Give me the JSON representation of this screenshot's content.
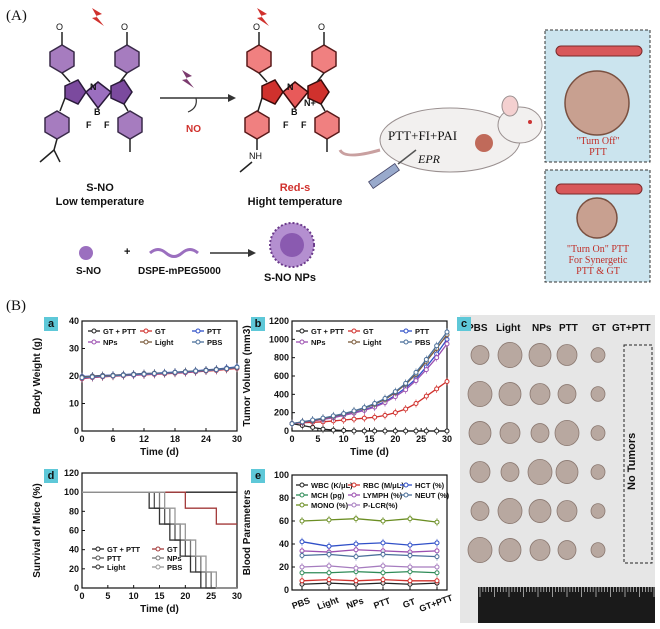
{
  "labels": {
    "A": "(A)",
    "B": "(B)"
  },
  "scheme": {
    "sno_name": "S-NO",
    "sno_sub": "Low temperature",
    "reds_name": "Red-s",
    "reds_sub": "Hight temperature",
    "no_label": "NO",
    "atoms": {
      "N": "N",
      "N_plus": "N+",
      "B": "B",
      "F1": "F",
      "F2": "F",
      "NH": "NH",
      "OMe": "O"
    },
    "modality": "PTT+FI+PAI",
    "epr": "EPR",
    "np_eq_sno": "S-NO",
    "np_eq_plus": "+",
    "np_eq_dspe": "DSPE-mPEG5000",
    "np_name": "S-NO NPs",
    "turn_off_1": "\"Turn Off\"",
    "turn_off_2": "PTT",
    "turn_on_1": "\"Turn On\" PTT",
    "turn_on_2": "For Synergetic",
    "turn_on_3": "PTT & GT"
  },
  "panel_tags": {
    "a": "a",
    "b": "b",
    "c": "c",
    "d": "d",
    "e": "e"
  },
  "photo": {
    "columns": [
      "PBS",
      "Light",
      "NPs",
      "PTT",
      "GT",
      "GT+PTT"
    ],
    "no_tumors": "No Tumors"
  },
  "chart_data": [
    {
      "id": "a",
      "type": "line",
      "xlabel": "Time (d)",
      "ylabel": "Body Weight (g)",
      "xlim": [
        0,
        30
      ],
      "ylim": [
        0,
        40
      ],
      "xticks": [
        0,
        6,
        12,
        18,
        24,
        30
      ],
      "yticks": [
        0,
        10,
        20,
        30,
        40
      ],
      "x": [
        0,
        2,
        4,
        6,
        8,
        10,
        12,
        14,
        16,
        18,
        20,
        22,
        24,
        26,
        28,
        30
      ],
      "series": [
        {
          "name": "GT + PTT",
          "color": "#222222",
          "values": [
            19.5,
            19.8,
            20,
            20.1,
            20.3,
            20.5,
            20.6,
            20.8,
            21,
            21.2,
            21.5,
            21.7,
            22,
            22.3,
            22.6,
            23
          ]
        },
        {
          "name": "GT",
          "color": "#d0312d",
          "values": [
            19,
            19.4,
            19.7,
            19.9,
            20.1,
            20.3,
            20.4,
            20.6,
            20.8,
            21,
            21.2,
            21.5,
            21.8,
            22,
            22.4,
            22.8
          ]
        },
        {
          "name": "PTT",
          "color": "#3050c8",
          "values": [
            19.8,
            20,
            20.2,
            20.3,
            20.5,
            20.7,
            20.9,
            21,
            21.2,
            21.4,
            21.6,
            21.9,
            22.2,
            22.5,
            22.9,
            23.3
          ]
        },
        {
          "name": "NPs",
          "color": "#9b4fb0",
          "values": [
            19.2,
            19.5,
            19.8,
            20,
            20.2,
            20.3,
            20.5,
            20.7,
            20.9,
            21.1,
            21.3,
            21.6,
            21.9,
            22.2,
            22.6,
            23
          ]
        },
        {
          "name": "Light",
          "color": "#7a5a3a",
          "values": [
            19.6,
            19.9,
            20.1,
            20.2,
            20.4,
            20.6,
            20.8,
            21,
            21.1,
            21.3,
            21.6,
            21.8,
            22.1,
            22.4,
            22.7,
            23.1
          ]
        },
        {
          "name": "PBS",
          "color": "#4a6f9a",
          "values": [
            19.4,
            19.7,
            19.9,
            20.1,
            20.3,
            20.5,
            20.7,
            20.9,
            21.1,
            21.3,
            21.5,
            21.8,
            22,
            22.3,
            22.7,
            23.2
          ]
        }
      ]
    },
    {
      "id": "b",
      "type": "line",
      "xlabel": "Time (d)",
      "ylabel": "Tumor  Volume (mm3)",
      "xlim": [
        0,
        30
      ],
      "ylim": [
        0,
        1200
      ],
      "xticks": [
        0,
        5,
        10,
        15,
        20,
        25,
        30
      ],
      "yticks": [
        0,
        200,
        400,
        600,
        800,
        1000,
        1200
      ],
      "x": [
        0,
        2,
        4,
        6,
        8,
        10,
        12,
        14,
        16,
        18,
        20,
        22,
        24,
        26,
        28,
        30
      ],
      "series": [
        {
          "name": "GT + PTT",
          "color": "#222222",
          "values": [
            80,
            60,
            40,
            20,
            10,
            5,
            0,
            0,
            0,
            0,
            0,
            0,
            0,
            0,
            0,
            0
          ]
        },
        {
          "name": "GT",
          "color": "#d0312d",
          "values": [
            80,
            90,
            95,
            100,
            110,
            120,
            130,
            140,
            150,
            170,
            200,
            240,
            300,
            380,
            460,
            540
          ]
        },
        {
          "name": "PTT",
          "color": "#3050c8",
          "values": [
            80,
            95,
            110,
            130,
            150,
            175,
            200,
            230,
            270,
            320,
            390,
            470,
            570,
            700,
            840,
            1000
          ]
        },
        {
          "name": "NPs",
          "color": "#9b4fb0",
          "values": [
            80,
            95,
            110,
            125,
            145,
            170,
            195,
            225,
            260,
            310,
            375,
            450,
            550,
            670,
            800,
            950
          ]
        },
        {
          "name": "Light",
          "color": "#7a5a3a",
          "values": [
            80,
            100,
            115,
            135,
            160,
            185,
            215,
            250,
            290,
            345,
            420,
            510,
            620,
            760,
            900,
            1050
          ]
        },
        {
          "name": "PBS",
          "color": "#4a6f9a",
          "values": [
            80,
            100,
            120,
            140,
            165,
            190,
            220,
            255,
            300,
            355,
            430,
            520,
            640,
            780,
            930,
            1080
          ]
        }
      ]
    },
    {
      "id": "d",
      "type": "line",
      "xlabel": "Time (d)",
      "ylabel": "Survival of Mice (%)",
      "xlim": [
        0,
        30
      ],
      "ylim": [
        0,
        120
      ],
      "xticks": [
        0,
        5,
        10,
        15,
        20,
        25,
        30
      ],
      "yticks": [
        0,
        20,
        40,
        60,
        80,
        100,
        120
      ],
      "series": [
        {
          "name": "GT + PTT",
          "color": "#222222",
          "steps": [
            [
              0,
              100
            ],
            [
              30,
              100
            ]
          ]
        },
        {
          "name": "GT",
          "color": "#a33a3a",
          "steps": [
            [
              0,
              100
            ],
            [
              20,
              100
            ],
            [
              20,
              83.3
            ],
            [
              26,
              83.3
            ],
            [
              26,
              66.7
            ],
            [
              30,
              66.7
            ]
          ]
        },
        {
          "name": "PTT",
          "color": "#555555",
          "steps": [
            [
              0,
              100
            ],
            [
              14,
              100
            ],
            [
              14,
              83.3
            ],
            [
              16,
              83.3
            ],
            [
              16,
              66.7
            ],
            [
              18,
              66.7
            ],
            [
              18,
              50
            ],
            [
              20,
              50
            ],
            [
              20,
              33.3
            ],
            [
              22,
              33.3
            ],
            [
              22,
              16.7
            ],
            [
              24,
              16.7
            ],
            [
              24,
              0
            ],
            [
              30,
              0
            ]
          ]
        },
        {
          "name": "NPs",
          "color": "#777777",
          "steps": [
            [
              0,
              100
            ],
            [
              15,
              100
            ],
            [
              15,
              83.3
            ],
            [
              17,
              83.3
            ],
            [
              17,
              66.7
            ],
            [
              19,
              66.7
            ],
            [
              19,
              50
            ],
            [
              21,
              50
            ],
            [
              21,
              33.3
            ],
            [
              23,
              33.3
            ],
            [
              23,
              16.7
            ],
            [
              25,
              16.7
            ],
            [
              25,
              0
            ],
            [
              30,
              0
            ]
          ]
        },
        {
          "name": "Light",
          "color": "#333333",
          "steps": [
            [
              0,
              100
            ],
            [
              13,
              100
            ],
            [
              13,
              83.3
            ],
            [
              15,
              83.3
            ],
            [
              15,
              66.7
            ],
            [
              17,
              66.7
            ],
            [
              17,
              50
            ],
            [
              19,
              50
            ],
            [
              19,
              33.3
            ],
            [
              21,
              33.3
            ],
            [
              21,
              16.7
            ],
            [
              23,
              16.7
            ],
            [
              23,
              0
            ],
            [
              30,
              0
            ]
          ]
        },
        {
          "name": "PBS",
          "color": "#999999",
          "steps": [
            [
              0,
              100
            ],
            [
              16,
              100
            ],
            [
              16,
              83.3
            ],
            [
              18,
              83.3
            ],
            [
              18,
              66.7
            ],
            [
              20,
              66.7
            ],
            [
              20,
              50
            ],
            [
              22,
              50
            ],
            [
              22,
              33.3
            ],
            [
              24,
              33.3
            ],
            [
              24,
              16.7
            ],
            [
              26,
              16.7
            ],
            [
              26,
              0
            ],
            [
              30,
              0
            ]
          ]
        }
      ]
    },
    {
      "id": "e",
      "type": "line",
      "xlabel": "",
      "ylabel": "Blood Parameters",
      "ylim": [
        0,
        100
      ],
      "yticks": [
        0,
        20,
        40,
        60,
        80,
        100
      ],
      "categories": [
        "PBS",
        "Light",
        "NPs",
        "PTT",
        "GT",
        "GT+PTT"
      ],
      "series": [
        {
          "name": "WBC (K/μL)",
          "color": "#222222",
          "values": [
            5,
            6,
            5,
            6,
            5,
            6
          ]
        },
        {
          "name": "RBC (M/μL)",
          "color": "#d0312d",
          "values": [
            8,
            9,
            8,
            9,
            8,
            8
          ]
        },
        {
          "name": "HCT (%)",
          "color": "#3050c8",
          "values": [
            42,
            38,
            40,
            41,
            39,
            41
          ]
        },
        {
          "name": "MCH (pg)",
          "color": "#2e8b57",
          "values": [
            15,
            15,
            16,
            15,
            16,
            15
          ]
        },
        {
          "name": "LYMPH (%)",
          "color": "#9b4fb0",
          "values": [
            34,
            33,
            35,
            34,
            33,
            34
          ]
        },
        {
          "name": "NEUT (%)",
          "color": "#4a6f9a",
          "values": [
            30,
            31,
            29,
            31,
            30,
            29
          ]
        },
        {
          "name": "MONO (%)",
          "color": "#6b8e23",
          "values": [
            60,
            61,
            62,
            60,
            62,
            59
          ]
        },
        {
          "name": "P-LCR(%)",
          "color": "#a67cbf",
          "values": [
            20,
            21,
            19,
            21,
            20,
            20
          ]
        }
      ]
    }
  ]
}
